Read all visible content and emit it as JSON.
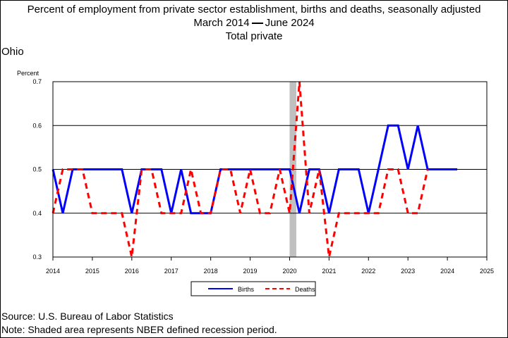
{
  "header": {
    "title": "Percent of employment from private sector establishment, births and deaths, seasonally adjusted",
    "period_start": "March 2014",
    "period_end": "June 2024",
    "subtitle": "Total private"
  },
  "region": "Ohio",
  "footer": {
    "source": "Source: U.S. Bureau of Labor Statistics",
    "note": "Note: Shaded area represents NBER defined recession period."
  },
  "colors": {
    "births": "#0000ff",
    "deaths": "#ff0000",
    "recession": "#c0c0c0"
  },
  "chart_data": {
    "type": "line",
    "ylabel": "Percent",
    "ylim": [
      0.3,
      0.7
    ],
    "yticks": [
      "0.3",
      "0.4",
      "0.5",
      "0.6",
      "0.7"
    ],
    "xlim": [
      2014,
      2025
    ],
    "xticks": [
      "2014",
      "2015",
      "2016",
      "2017",
      "2018",
      "2019",
      "2020",
      "2021",
      "2022",
      "2023",
      "2024",
      "2025"
    ],
    "grid": true,
    "legend_position": "bottom",
    "recession": [
      2020.0,
      2020.17
    ],
    "series": [
      {
        "name": "Births",
        "style": "solid",
        "points": [
          [
            2014.0,
            0.5
          ],
          [
            2014.25,
            0.4
          ],
          [
            2014.5,
            0.5
          ],
          [
            2014.75,
            0.5
          ],
          [
            2015.0,
            0.5
          ],
          [
            2015.25,
            0.5
          ],
          [
            2015.5,
            0.5
          ],
          [
            2015.75,
            0.5
          ],
          [
            2016.0,
            0.4
          ],
          [
            2016.25,
            0.5
          ],
          [
            2016.5,
            0.5
          ],
          [
            2016.75,
            0.5
          ],
          [
            2017.0,
            0.4
          ],
          [
            2017.25,
            0.5
          ],
          [
            2017.5,
            0.4
          ],
          [
            2017.75,
            0.4
          ],
          [
            2018.0,
            0.4
          ],
          [
            2018.25,
            0.5
          ],
          [
            2018.5,
            0.5
          ],
          [
            2018.75,
            0.5
          ],
          [
            2019.0,
            0.5
          ],
          [
            2019.25,
            0.5
          ],
          [
            2019.5,
            0.5
          ],
          [
            2019.75,
            0.5
          ],
          [
            2020.0,
            0.5
          ],
          [
            2020.25,
            0.4
          ],
          [
            2020.5,
            0.5
          ],
          [
            2020.75,
            0.5
          ],
          [
            2021.0,
            0.4
          ],
          [
            2021.25,
            0.5
          ],
          [
            2021.5,
            0.5
          ],
          [
            2021.75,
            0.5
          ],
          [
            2022.0,
            0.4
          ],
          [
            2022.25,
            0.5
          ],
          [
            2022.5,
            0.6
          ],
          [
            2022.75,
            0.6
          ],
          [
            2023.0,
            0.5
          ],
          [
            2023.25,
            0.6
          ],
          [
            2023.5,
            0.5
          ],
          [
            2023.75,
            0.5
          ],
          [
            2024.0,
            0.5
          ],
          [
            2024.25,
            0.5
          ]
        ]
      },
      {
        "name": "Deaths",
        "style": "dashed",
        "points": [
          [
            2014.0,
            0.4
          ],
          [
            2014.25,
            0.5
          ],
          [
            2014.5,
            0.5
          ],
          [
            2014.75,
            0.5
          ],
          [
            2015.0,
            0.4
          ],
          [
            2015.25,
            0.4
          ],
          [
            2015.5,
            0.4
          ],
          [
            2015.75,
            0.4
          ],
          [
            2016.0,
            0.3
          ],
          [
            2016.25,
            0.5
          ],
          [
            2016.5,
            0.5
          ],
          [
            2016.75,
            0.4
          ],
          [
            2017.0,
            0.4
          ],
          [
            2017.25,
            0.4
          ],
          [
            2017.5,
            0.5
          ],
          [
            2017.75,
            0.4
          ],
          [
            2018.0,
            0.4
          ],
          [
            2018.25,
            0.5
          ],
          [
            2018.5,
            0.5
          ],
          [
            2018.75,
            0.4
          ],
          [
            2019.0,
            0.5
          ],
          [
            2019.25,
            0.4
          ],
          [
            2019.5,
            0.4
          ],
          [
            2019.75,
            0.5
          ],
          [
            2020.0,
            0.4
          ],
          [
            2020.25,
            0.7
          ],
          [
            2020.5,
            0.4
          ],
          [
            2020.75,
            0.5
          ],
          [
            2021.0,
            0.3
          ],
          [
            2021.25,
            0.4
          ],
          [
            2021.5,
            0.4
          ],
          [
            2021.75,
            0.4
          ],
          [
            2022.0,
            0.4
          ],
          [
            2022.25,
            0.4
          ],
          [
            2022.5,
            0.5
          ],
          [
            2022.75,
            0.5
          ],
          [
            2023.0,
            0.4
          ],
          [
            2023.25,
            0.4
          ],
          [
            2023.5,
            0.5
          ]
        ]
      }
    ]
  }
}
